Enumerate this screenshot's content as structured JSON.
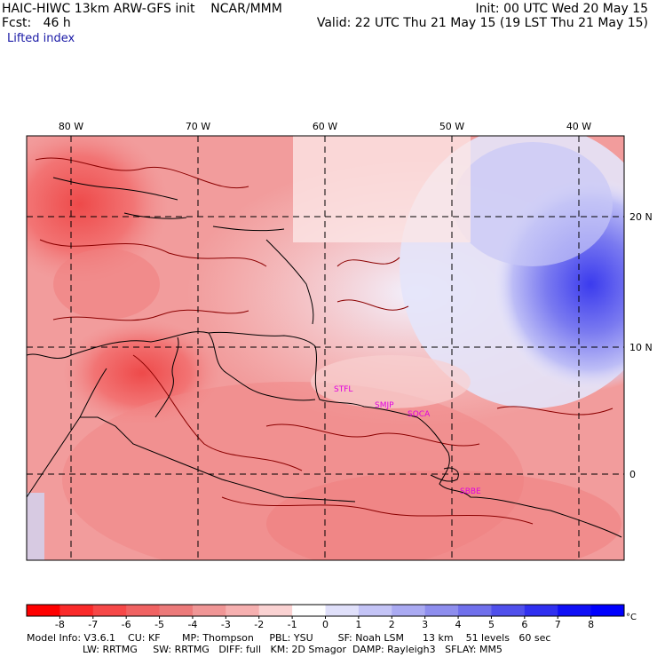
{
  "header": {
    "title": "HAIC-HIWC 13km ARW-GFS init    NCAR/MMM",
    "init": "Init: 00 UTC Wed 20 May 15",
    "fcst": "Fcst:   46 h",
    "valid": "Valid: 22 UTC Thu 21 May 15 (19 LST Thu 21 May 15)",
    "field": "Lifted index"
  },
  "map": {
    "lon_labels": [
      "80 W",
      "70 W",
      "60 W",
      "50 W",
      "40 W"
    ],
    "lat_labels": [
      "20 N",
      "10 N",
      "0"
    ],
    "stations": [
      "STFL",
      "SMJP",
      "SOCA",
      "SBBE"
    ],
    "colors": {
      "land_outline": "#000000",
      "contour": "#8b0000",
      "grid": "#000000",
      "station": "#e000e0"
    }
  },
  "colorbar": {
    "ticks": [
      "-8",
      "-7",
      "-6",
      "-5",
      "-4",
      "-3",
      "-2",
      "-1",
      "0",
      "1",
      "2",
      "3",
      "4",
      "5",
      "6",
      "7",
      "8"
    ],
    "unit": "°C",
    "colors": [
      "#ff0000",
      "#fa2a2a",
      "#f64848",
      "#f06262",
      "#ec7a7a",
      "#f09696",
      "#f6b0b0",
      "#fad2d2",
      "#ffffff",
      "#e0e0fa",
      "#c4c4f6",
      "#aaaaf2",
      "#8e8eee",
      "#7070ec",
      "#5050ec",
      "#3030f0",
      "#1010f6",
      "#0000fe"
    ]
  },
  "footer": {
    "line1": "Model Info: V3.6.1    CU: KF       MP: Thompson     PBL: YSU        SF: Noah LSM      13 km    51 levels   60 sec",
    "line2": "                  LW: RRTMG     SW: RRTMG   DIFF: full   KM: 2D Smagor  DAMP: Rayleigh3   SFLAY: MM5"
  }
}
